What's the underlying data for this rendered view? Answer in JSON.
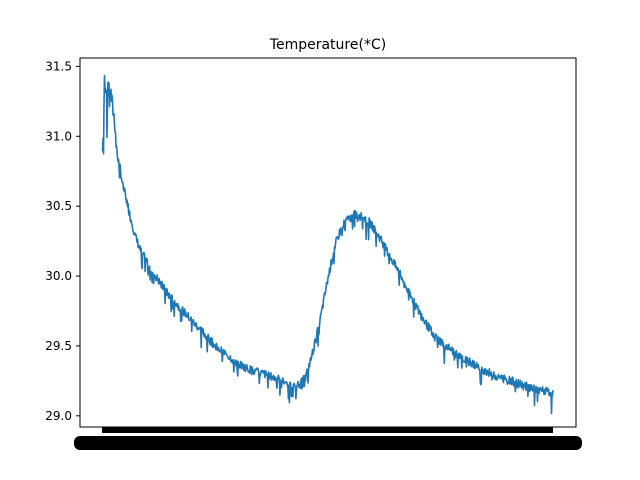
{
  "chart_data": {
    "type": "line",
    "title": "Temperature(*C)",
    "xlabel": "",
    "ylabel": "",
    "ylim": [
      28.92,
      31.56
    ],
    "yticks": [
      "29.0",
      "29.5",
      "30.0",
      "30.5",
      "31.0",
      "31.5"
    ],
    "x_tick_labels_note": "",
    "series": [
      {
        "color": "#1f77b4",
        "keypoints": [
          [
            0,
            30.9
          ],
          [
            1,
            31.02
          ],
          [
            2,
            31.42
          ],
          [
            4,
            31.3
          ],
          [
            6,
            31.38
          ],
          [
            8,
            31.22
          ],
          [
            10,
            31.1
          ],
          [
            12,
            30.85
          ],
          [
            14,
            30.78
          ],
          [
            16,
            30.65
          ],
          [
            19,
            30.55
          ],
          [
            22,
            30.42
          ],
          [
            26,
            30.28
          ],
          [
            30,
            30.18
          ],
          [
            35,
            30.1
          ],
          [
            40,
            30.02
          ],
          [
            46,
            29.94
          ],
          [
            52,
            29.86
          ],
          [
            58,
            29.8
          ],
          [
            64,
            29.74
          ],
          [
            70,
            29.68
          ],
          [
            76,
            29.62
          ],
          [
            82,
            29.56
          ],
          [
            88,
            29.5
          ],
          [
            95,
            29.45
          ],
          [
            102,
            29.4
          ],
          [
            110,
            29.35
          ],
          [
            118,
            29.32
          ],
          [
            126,
            29.3
          ],
          [
            134,
            29.27
          ],
          [
            140,
            29.25
          ],
          [
            146,
            29.22
          ],
          [
            150,
            29.2
          ],
          [
            154,
            29.23
          ],
          [
            158,
            29.28
          ],
          [
            162,
            29.4
          ],
          [
            166,
            29.55
          ],
          [
            170,
            29.72
          ],
          [
            174,
            29.92
          ],
          [
            178,
            30.1
          ],
          [
            182,
            30.25
          ],
          [
            186,
            30.35
          ],
          [
            190,
            30.4
          ],
          [
            196,
            30.44
          ],
          [
            202,
            30.43
          ],
          [
            208,
            30.38
          ],
          [
            214,
            30.3
          ],
          [
            220,
            30.2
          ],
          [
            226,
            30.1
          ],
          [
            232,
            30.0
          ],
          [
            238,
            29.88
          ],
          [
            244,
            29.78
          ],
          [
            250,
            29.68
          ],
          [
            256,
            29.6
          ],
          [
            262,
            29.54
          ],
          [
            270,
            29.48
          ],
          [
            278,
            29.42
          ],
          [
            286,
            29.38
          ],
          [
            294,
            29.34
          ],
          [
            302,
            29.3
          ],
          [
            310,
            29.27
          ],
          [
            318,
            29.25
          ],
          [
            326,
            29.22
          ],
          [
            334,
            29.2
          ],
          [
            342,
            29.18
          ],
          [
            350,
            29.16
          ]
        ]
      }
    ]
  }
}
